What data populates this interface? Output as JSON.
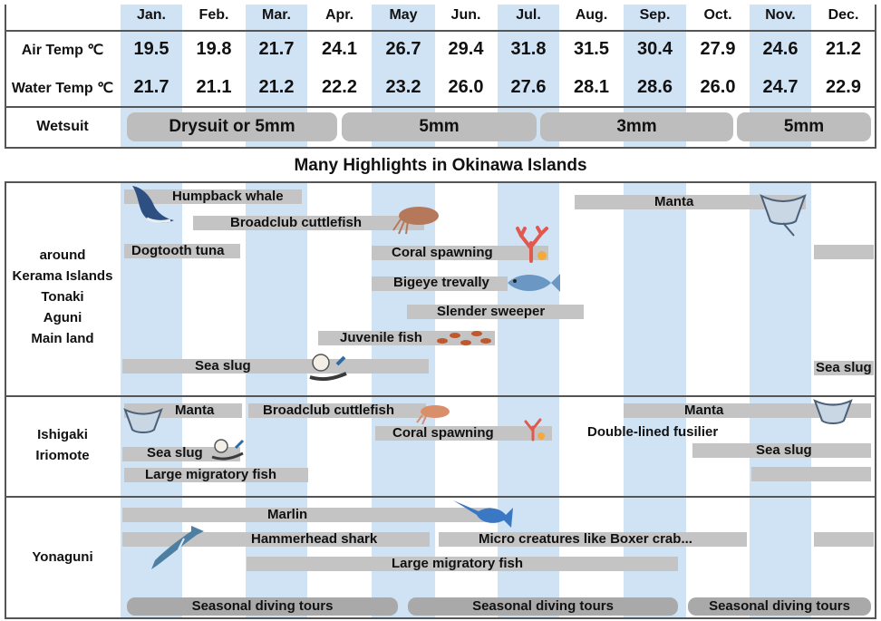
{
  "months": [
    "Jan.",
    "Feb.",
    "Mar.",
    "Apr.",
    "May",
    "Jun.",
    "Jul.",
    "Aug.",
    "Sep.",
    "Oct.",
    "Nov.",
    "Dec."
  ],
  "rows": {
    "air_label": "Air Temp ℃",
    "water_label": "Water Temp ℃",
    "wetsuit_label": "Wetsuit",
    "air": [
      "19.5",
      "19.8",
      "21.7",
      "24.1",
      "26.7",
      "29.4",
      "31.8",
      "31.5",
      "30.4",
      "27.9",
      "24.6",
      "21.2"
    ],
    "water": [
      "21.7",
      "21.1",
      "21.2",
      "22.2",
      "23.2",
      "26.0",
      "27.6",
      "28.1",
      "28.6",
      "26.0",
      "24.7",
      "22.9"
    ]
  },
  "wetsuit": [
    "Drysuit or 5mm",
    "5mm",
    "3mm",
    "5mm"
  ],
  "banner": "Many Highlights in Okinawa Islands",
  "regions": {
    "kerama": [
      "around",
      "Kerama Islands",
      "Tonaki",
      "Aguni",
      "Main land"
    ],
    "ishigaki": [
      "Ishigaki",
      "Iriomote"
    ],
    "yonaguni": "Yonaguni"
  },
  "kerama": {
    "humpback": "Humpback whale",
    "broadclub": "Broadclub cuttlefish",
    "dogtooth": "Dogtooth tuna",
    "coral": "Coral spawning",
    "bigeye": "Bigeye trevally",
    "sweeper": "Slender sweeper",
    "juvenile": "Juvenile fish",
    "seaslug": "Sea slug",
    "seaslug2": "Sea slug",
    "manta": "Manta"
  },
  "ishigaki": {
    "manta": "Manta",
    "broadclub": "Broadclub cuttlefish",
    "coral": "Coral spawning",
    "seaslug": "Sea slug",
    "large": "Large migratory fish",
    "manta2": "Manta",
    "fusilier": "Double-lined fusilier",
    "seaslug2": "Sea slug"
  },
  "yonaguni": {
    "marlin": "Marlin",
    "hammerhead": "Hammerhead shark",
    "micro": "Micro creatures like Boxer crab...",
    "large": "Large migratory fish"
  },
  "tours": [
    "Seasonal diving tours",
    "Seasonal diving tours",
    "Seasonal diving tours"
  ],
  "colors": {
    "stripe": "#cfe3f5",
    "bar": "#c4c4c4",
    "pill": "#bdbdbd"
  }
}
